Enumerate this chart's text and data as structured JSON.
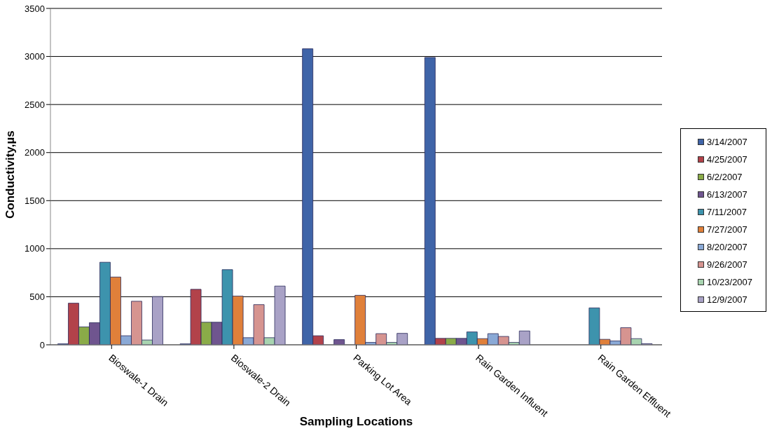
{
  "chart_data": {
    "type": "bar",
    "xlabel": "Sampling Locations",
    "ylabel": "Conductivity,µs",
    "categories": [
      "Bioswale-1 Drain",
      "Bioswale-2 Drain",
      "Parking Lot Area",
      "Rain Garden Influent",
      "Rain Garden Effluent"
    ],
    "series": [
      {
        "name": "3/14/2007",
        "color": "#3f64a8",
        "values": [
          10,
          10,
          3080,
          2990,
          null
        ]
      },
      {
        "name": "4/25/2007",
        "color": "#b2424a",
        "values": [
          433,
          577,
          94,
          67,
          null
        ]
      },
      {
        "name": "6/2/2007",
        "color": "#8aab48",
        "values": [
          186,
          235,
          null,
          67,
          null
        ]
      },
      {
        "name": "6/13/2007",
        "color": "#6f558f",
        "values": [
          230,
          235,
          54,
          67,
          null
        ]
      },
      {
        "name": "7/11/2007",
        "color": "#3d93ad",
        "values": [
          859,
          782,
          0,
          134,
          384
        ]
      },
      {
        "name": "7/27/2007",
        "color": "#e0803a",
        "values": [
          705,
          507,
          515,
          64,
          57
        ]
      },
      {
        "name": "8/20/2007",
        "color": "#8aa9d6",
        "values": [
          94,
          74,
          25,
          116,
          40
        ]
      },
      {
        "name": "9/26/2007",
        "color": "#d69490",
        "values": [
          453,
          418,
          116,
          87,
          178
        ]
      },
      {
        "name": "10/23/2007",
        "color": "#a8d4b0",
        "values": [
          50,
          74,
          25,
          25,
          64
        ]
      },
      {
        "name": "12/9/2007",
        "color": "#a9a2c6",
        "values": [
          502,
          611,
          119,
          144,
          12
        ]
      }
    ],
    "ylim": [
      0,
      3500
    ],
    "yticks": [
      0,
      500,
      1000,
      1500,
      2000,
      2500,
      3000,
      3500
    ],
    "grid": "y",
    "legend": "right"
  }
}
